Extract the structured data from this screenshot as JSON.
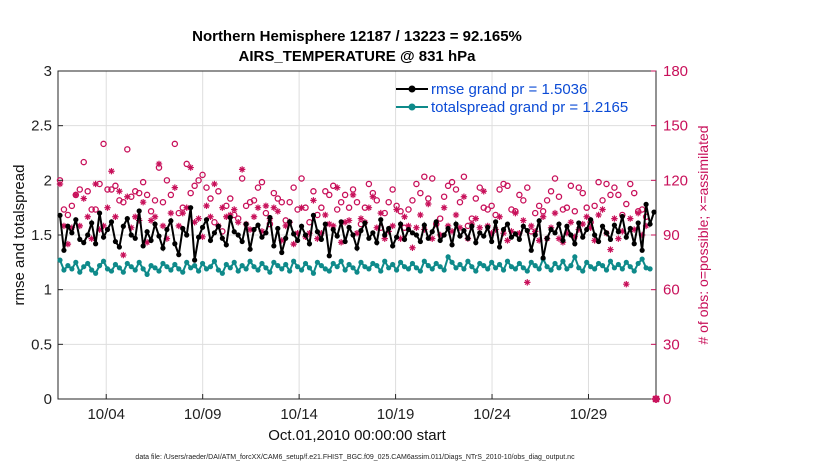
{
  "chart_data": {
    "type": "line",
    "title": "Northern Hemisphere 12187 / 13223 = 92.165%",
    "subtitle": "AIRS_TEMPERATURE @ 831 hPa",
    "xlabel": "Oct.01,2010 00:00:00 start",
    "ylabel": "rmse and totalspread",
    "y2label": "# of obs: o=possible; ×=assimilated",
    "footnote": "data file: /Users/raeder/DAI/ATM_forcXX/CAM6_setup/f.e21.FHIST_BGC.f09_025.CAM6assim.011/Diags_NTrS_2010-10/obs_diag_output.nc",
    "xlim": [
      1.5,
      32.5
    ],
    "ylim": [
      0,
      3
    ],
    "y2lim": [
      0,
      180
    ],
    "x_ticks": [
      4,
      9,
      14,
      19,
      24,
      29
    ],
    "x_tick_labels": [
      "10/04",
      "10/09",
      "10/14",
      "10/19",
      "10/24",
      "10/29"
    ],
    "y_ticks": [
      "0",
      "0.5",
      "1",
      "1.5",
      "2",
      "2.5",
      "3"
    ],
    "y_tick_values": [
      0,
      0.5,
      1,
      1.5,
      2,
      2.5,
      3
    ],
    "y2_ticks": [
      "0",
      "30",
      "60",
      "90",
      "120",
      "150",
      "180"
    ],
    "y2_tick_values": [
      0,
      30,
      60,
      90,
      120,
      150,
      180
    ],
    "legend_position": "top-right",
    "series": [
      {
        "name": "rmse",
        "legend": "rmse grand pr = 1.5036",
        "color": "#000000",
        "values": [
          1.68,
          1.36,
          1.58,
          1.52,
          1.64,
          1.46,
          1.43,
          1.5,
          1.61,
          1.42,
          1.7,
          1.48,
          1.55,
          1.62,
          1.44,
          1.39,
          1.58,
          1.65,
          1.5,
          1.47,
          1.72,
          1.4,
          1.53,
          1.45,
          1.6,
          1.49,
          1.38,
          1.55,
          1.63,
          1.42,
          1.32,
          1.56,
          1.5,
          1.75,
          1.27,
          1.48,
          1.57,
          1.64,
          1.45,
          1.52,
          1.58,
          1.47,
          1.41,
          1.66,
          1.53,
          1.5,
          1.44,
          1.6,
          1.37,
          1.55,
          1.59,
          1.48,
          1.52,
          1.66,
          1.4,
          1.56,
          1.34,
          1.47,
          1.62,
          1.51,
          1.45,
          1.58,
          1.5,
          1.42,
          1.68,
          1.53,
          1.46,
          1.6,
          1.31,
          1.55,
          1.49,
          1.62,
          1.44,
          1.57,
          1.5,
          1.38,
          1.54,
          1.61,
          1.47,
          1.52,
          1.43,
          1.64,
          1.5,
          1.56,
          1.4,
          1.48,
          1.6,
          1.46,
          1.55,
          1.52,
          1.5,
          1.44,
          1.59,
          1.47,
          1.53,
          1.62,
          1.45,
          1.5,
          1.56,
          1.41,
          1.6,
          1.49,
          1.54,
          1.47,
          1.58,
          1.43,
          1.52,
          1.49,
          1.57,
          1.44,
          1.62,
          1.39,
          1.55,
          1.6,
          1.48,
          1.51,
          1.46,
          1.58,
          1.54,
          1.36,
          1.5,
          1.63,
          1.29,
          1.47,
          1.55,
          1.52,
          1.6,
          1.45,
          1.58,
          1.5,
          1.42,
          1.61,
          1.48,
          1.55,
          1.64,
          1.5,
          1.44,
          1.58,
          1.52,
          1.46,
          1.59,
          1.53,
          1.67,
          1.48,
          1.56,
          1.42,
          1.61,
          1.36,
          1.78,
          1.6,
          1.71
        ]
      },
      {
        "name": "totalspread",
        "legend": "totalspread grand pr = 1.2165",
        "color": "#0e8a8a",
        "values": [
          1.27,
          1.18,
          1.22,
          1.19,
          1.25,
          1.16,
          1.21,
          1.24,
          1.18,
          1.15,
          1.22,
          1.26,
          1.19,
          1.17,
          1.23,
          1.2,
          1.16,
          1.24,
          1.21,
          1.18,
          1.25,
          1.19,
          1.14,
          1.22,
          1.2,
          1.17,
          1.24,
          1.21,
          1.18,
          1.23,
          1.19,
          1.16,
          1.25,
          1.2,
          1.22,
          1.17,
          1.24,
          1.19,
          1.21,
          1.26,
          1.18,
          1.15,
          1.23,
          1.2,
          1.25,
          1.17,
          1.22,
          1.19,
          1.26,
          1.21,
          1.18,
          1.24,
          1.2,
          1.16,
          1.25,
          1.22,
          1.19,
          1.23,
          1.17,
          1.26,
          1.21,
          1.18,
          1.24,
          1.2,
          1.15,
          1.25,
          1.22,
          1.19,
          1.17,
          1.24,
          1.21,
          1.26,
          1.18,
          1.23,
          1.2,
          1.16,
          1.25,
          1.21,
          1.19,
          1.24,
          1.22,
          1.17,
          1.26,
          1.2,
          1.23,
          1.18,
          1.25,
          1.21,
          1.19,
          1.24,
          1.2,
          1.17,
          1.26,
          1.22,
          1.19,
          1.24,
          1.21,
          1.18,
          1.3,
          1.25,
          1.2,
          1.23,
          1.19,
          1.26,
          1.21,
          1.17,
          1.24,
          1.22,
          1.19,
          1.25,
          1.2,
          1.23,
          1.18,
          1.26,
          1.21,
          1.19,
          1.24,
          1.2,
          1.17,
          1.25,
          1.22,
          1.19,
          1.28,
          1.21,
          1.18,
          1.24,
          1.2,
          1.26,
          1.19,
          1.22,
          1.3,
          1.2,
          1.17,
          1.25,
          1.21,
          1.19,
          1.24,
          1.22,
          1.18,
          1.26,
          1.2,
          1.23,
          1.19,
          1.25,
          1.21,
          1.17,
          1.24,
          1.28,
          1.2,
          1.19
        ]
      },
      {
        "name": "obs_possible",
        "marker": "o",
        "axis": "right",
        "color": "#c8105a",
        "values": [
          120,
          104,
          101,
          106,
          112,
          115,
          130,
          114,
          104,
          104,
          118,
          140,
          115,
          115,
          117,
          109,
          108,
          137,
          111,
          114,
          113,
          119,
          112,
          103,
          109,
          127,
          108,
          120,
          112,
          140,
          102,
          105,
          129,
          113,
          117,
          120,
          123,
          116,
          110,
          97,
          114,
          92,
          106,
          110,
          101,
          99,
          121,
          106,
          108,
          109,
          116,
          119,
          102,
          96,
          113,
          110,
          108,
          98,
          108,
          116,
          104,
          121,
          105,
          97,
          114,
          101,
          105,
          114,
          112,
          117,
          104,
          108,
          112,
          105,
          115,
          108,
          96,
          105,
          118,
          113,
          109,
          94,
          102,
          108,
          115,
          106,
          103,
          94,
          104,
          109,
          118,
          113,
          122,
          110,
          121,
          96,
          99,
          111,
          117,
          119,
          115,
          108,
          122,
          95,
          99,
          110,
          116,
          105,
          104,
          106,
          101,
          115,
          118,
          117,
          104,
          103,
          112,
          109,
          116,
          92,
          102,
          106,
          103,
          109,
          114,
          121,
          111,
          104,
          105,
          117,
          103,
          116,
          113,
          105,
          97,
          106,
          119,
          109,
          118,
          112,
          116,
          112,
          101,
          107,
          118,
          113,
          103,
          104,
          100
        ]
      },
      {
        "name": "obs_assimilated",
        "marker": "*",
        "axis": "right",
        "color": "#c8105a",
        "values": [
          118,
          95,
          85,
          94,
          112,
          95,
          110,
          100,
          88,
          118,
          93,
          95,
          105,
          125,
          100,
          114,
          79,
          111,
          94,
          100,
          98,
          108,
          86,
          98,
          100,
          129,
          95,
          88,
          102,
          116,
          95,
          102,
          105,
          127,
          97,
          99,
          89,
          106,
          100,
          118,
          95,
          105,
          100,
          101,
          104,
          97,
          126,
          96,
          93,
          100,
          105,
          92,
          106,
          99,
          105,
          103,
          87,
          95,
          97,
          85,
          91,
          105,
          89,
          91,
          109,
          88,
          91,
          101,
          96,
          95,
          116,
          86,
          97,
          98,
          112,
          91,
          99,
          97,
          105,
          111,
          94,
          102,
          88,
          92,
          95,
          104,
          88,
          100,
          95,
          83,
          94,
          101,
          93,
          107,
          88,
          96,
          90,
          105,
          95,
          92,
          101,
          94,
          111,
          88,
          96,
          99,
          94,
          114,
          95,
          91,
          93,
          100,
          91,
          87,
          92,
          102,
          91,
          98,
          64,
          95,
          92,
          87,
          100,
          88,
          94,
          102,
          88,
          86,
          91,
          97,
          89,
          93,
          96,
          100,
          94,
          87,
          101,
          104,
          91,
          82,
          99,
          88,
          92,
          63,
          99,
          93,
          102,
          90,
          95
        ]
      }
    ]
  }
}
